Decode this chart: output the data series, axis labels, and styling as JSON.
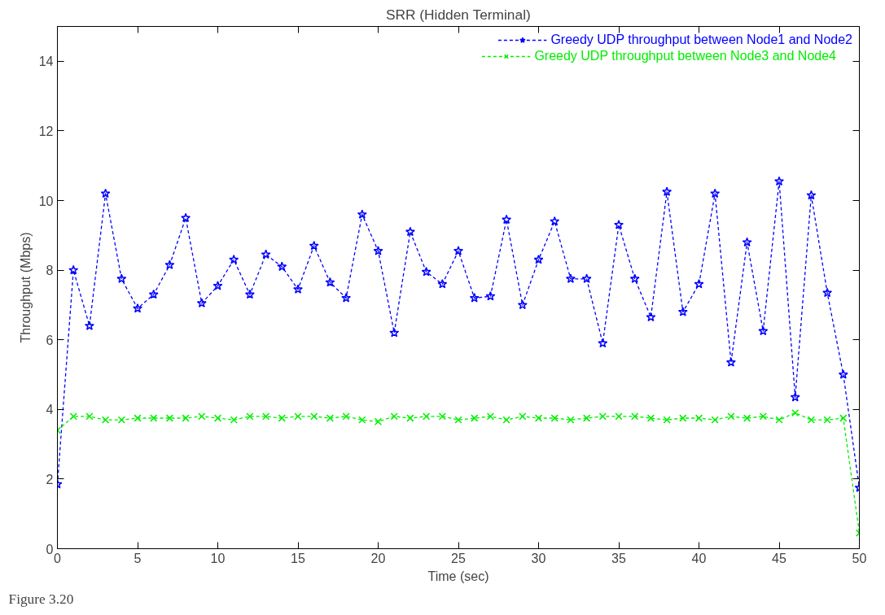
{
  "chart_data": {
    "type": "line",
    "title": "SRR (Hidden Terminal)",
    "xlabel": "Time (sec)",
    "ylabel": "Throughput (Mbps)",
    "x": [
      0,
      1,
      2,
      3,
      4,
      5,
      6,
      7,
      8,
      9,
      10,
      11,
      12,
      13,
      14,
      15,
      16,
      17,
      18,
      19,
      20,
      21,
      22,
      23,
      24,
      25,
      26,
      27,
      28,
      29,
      30,
      31,
      32,
      33,
      34,
      35,
      36,
      37,
      38,
      39,
      40,
      41,
      42,
      43,
      44,
      45,
      46,
      47,
      48,
      49,
      50
    ],
    "series": [
      {
        "name": "Greedy UDP throughput between Node1 and Node2",
        "color": "#0000ff",
        "marker": "star",
        "values": [
          1.85,
          8.0,
          6.4,
          10.2,
          7.75,
          6.9,
          7.3,
          8.15,
          9.5,
          7.05,
          7.55,
          8.3,
          7.3,
          8.45,
          8.1,
          7.45,
          8.7,
          7.65,
          7.2,
          9.6,
          8.55,
          6.2,
          9.1,
          7.95,
          7.6,
          8.55,
          7.2,
          7.25,
          9.45,
          7.0,
          8.3,
          9.4,
          7.75,
          7.75,
          5.9,
          9.3,
          7.75,
          6.65,
          10.25,
          6.8,
          7.6,
          10.2,
          5.35,
          8.8,
          6.25,
          10.55,
          4.35,
          10.15,
          7.35,
          5.0,
          1.75
        ]
      },
      {
        "name": "Greedy UDP throughput between Node3 and Node4",
        "color": "#00ee00",
        "marker": "cross",
        "values": [
          3.4,
          3.8,
          3.8,
          3.7,
          3.7,
          3.75,
          3.75,
          3.75,
          3.75,
          3.8,
          3.75,
          3.7,
          3.8,
          3.8,
          3.75,
          3.8,
          3.8,
          3.75,
          3.8,
          3.7,
          3.65,
          3.8,
          3.75,
          3.8,
          3.8,
          3.7,
          3.75,
          3.8,
          3.7,
          3.8,
          3.75,
          3.75,
          3.7,
          3.75,
          3.8,
          3.8,
          3.8,
          3.75,
          3.7,
          3.75,
          3.75,
          3.7,
          3.8,
          3.75,
          3.8,
          3.7,
          3.9,
          3.7,
          3.7,
          3.75,
          0.45
        ]
      }
    ],
    "xlim": [
      0,
      50
    ],
    "ylim": [
      0,
      15
    ],
    "xticks": [
      0,
      5,
      10,
      15,
      20,
      25,
      30,
      35,
      40,
      45,
      50
    ],
    "yticks": [
      0,
      2,
      4,
      6,
      8,
      10,
      12,
      14
    ],
    "grid": false,
    "legend": "top right",
    "line_style": "dashed",
    "annotations": [
      "Figure 3.20"
    ]
  }
}
